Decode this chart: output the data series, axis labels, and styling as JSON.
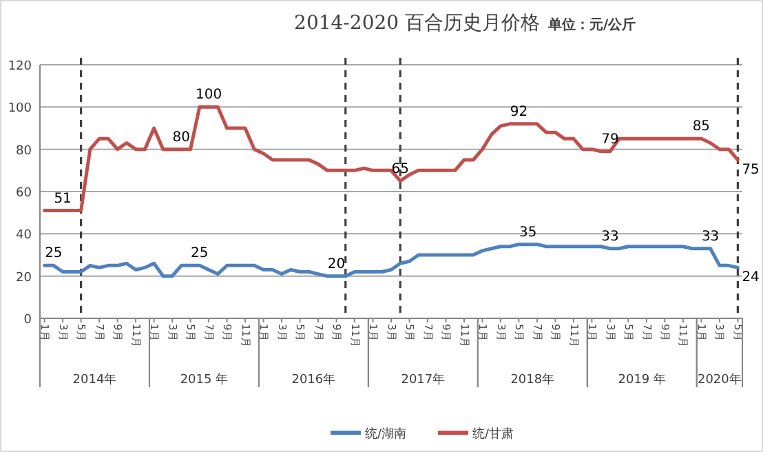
{
  "chart_data": {
    "type": "line",
    "title": "2014-2020 百合历史月价格",
    "subtitle": "单位：元/公斤",
    "x": [
      "2014-01",
      "2014-02",
      "2014-03",
      "2014-04",
      "2014-05",
      "2014-06",
      "2014-07",
      "2014-08",
      "2014-09",
      "2014-10",
      "2014-11",
      "2014-12",
      "2015-01",
      "2015-02",
      "2015-03",
      "2015-04",
      "2015-05",
      "2015-06",
      "2015-07",
      "2015-08",
      "2015-09",
      "2015-10",
      "2015-11",
      "2015-12",
      "2016-01",
      "2016-02",
      "2016-03",
      "2016-04",
      "2016-05",
      "2016-06",
      "2016-07",
      "2016-08",
      "2016-09",
      "2016-10",
      "2016-11",
      "2016-12",
      "2017-01",
      "2017-02",
      "2017-03",
      "2017-04",
      "2017-05",
      "2017-06",
      "2017-07",
      "2017-08",
      "2017-09",
      "2017-10",
      "2017-11",
      "2017-12",
      "2018-01",
      "2018-02",
      "2018-03",
      "2018-04",
      "2018-05",
      "2018-06",
      "2018-07",
      "2018-08",
      "2018-09",
      "2018-10",
      "2018-11",
      "2018-12",
      "2019-01",
      "2019-02",
      "2019-03",
      "2019-04",
      "2019-05",
      "2019-06",
      "2019-07",
      "2019-08",
      "2019-09",
      "2019-10",
      "2019-11",
      "2019-12",
      "2020-01",
      "2020-02",
      "2020-03",
      "2020-04",
      "2020-05"
    ],
    "xlim": [
      "2013-12-16",
      "2020-05-16"
    ],
    "xticks": [
      {
        "value": "2014-01",
        "label": "1月"
      },
      {
        "value": "2014-03",
        "label": "3月"
      },
      {
        "value": "2014-05",
        "label": "5月"
      },
      {
        "value": "2014-07",
        "label": "7月"
      },
      {
        "value": "2014-09",
        "label": "9月"
      },
      {
        "value": "2014-11",
        "label": "11月"
      },
      {
        "value": "2015-01",
        "label": "1月"
      },
      {
        "value": "2015-03",
        "label": "3月"
      },
      {
        "value": "2015-05",
        "label": "5月"
      },
      {
        "value": "2015-07",
        "label": "7月"
      },
      {
        "value": "2015-09",
        "label": "9月"
      },
      {
        "value": "2015-11",
        "label": "11月"
      },
      {
        "value": "2016-01",
        "label": "1月"
      },
      {
        "value": "2016-03",
        "label": "3月"
      },
      {
        "value": "2016-05",
        "label": "5月"
      },
      {
        "value": "2016-07",
        "label": "7月"
      },
      {
        "value": "2016-09",
        "label": "9月"
      },
      {
        "value": "2016-11",
        "label": "11月"
      },
      {
        "value": "2017-01",
        "label": "1月"
      },
      {
        "value": "2017-03",
        "label": "3月"
      },
      {
        "value": "2017-05",
        "label": "5月"
      },
      {
        "value": "2017-07",
        "label": "7月"
      },
      {
        "value": "2017-09",
        "label": "9月"
      },
      {
        "value": "2017-11",
        "label": "11月"
      },
      {
        "value": "2018-01",
        "label": "1月"
      },
      {
        "value": "2018-03",
        "label": "3月"
      },
      {
        "value": "2018-05",
        "label": "5月"
      },
      {
        "value": "2018-07",
        "label": "7月"
      },
      {
        "value": "2018-09",
        "label": "9月"
      },
      {
        "value": "2018-11",
        "label": "11月"
      },
      {
        "value": "2019-01",
        "label": "1月"
      },
      {
        "value": "2019-03",
        "label": "3月"
      },
      {
        "value": "2019-05",
        "label": "5月"
      },
      {
        "value": "2019-07",
        "label": "7月"
      },
      {
        "value": "2019-09",
        "label": "9月"
      },
      {
        "value": "2019-11",
        "label": "11月"
      },
      {
        "value": "2020-01",
        "label": "1月"
      },
      {
        "value": "2020-03",
        "label": "3月"
      },
      {
        "value": "2020-05",
        "label": "5月"
      }
    ],
    "annotations": [
      "2014年",
      "2015 年",
      "2016年",
      "2017年",
      "2018年",
      "2019 年",
      "2020年"
    ],
    "ylim": [
      0,
      120
    ],
    "yticks": [
      0,
      20,
      40,
      60,
      80,
      100,
      120
    ],
    "grid": "y",
    "legend": "bottom",
    "ref_lines": [
      {
        "axis": "x",
        "value": "2014-05",
        "color": "#404040",
        "line_style": "dashed"
      },
      {
        "axis": "x",
        "value": "2016-10",
        "color": "#404040",
        "line_style": "dashed"
      },
      {
        "axis": "x",
        "value": "2017-04",
        "color": "#404040",
        "line_style": "dashed"
      },
      {
        "axis": "x",
        "value": "2020-05",
        "color": "#404040",
        "line_style": "dashed"
      }
    ],
    "series": [
      {
        "name": "统/湖南",
        "color": "#4f81bd",
        "values": [
          25,
          25,
          22,
          22,
          22,
          25,
          24,
          25,
          25,
          26,
          23,
          24,
          26,
          20,
          20,
          25,
          25,
          25,
          23,
          21,
          25,
          25,
          25,
          25,
          23,
          23,
          21,
          23,
          22,
          22,
          21,
          20,
          20,
          20,
          22,
          22,
          22,
          22,
          23,
          26,
          27,
          30,
          30,
          30,
          30,
          30,
          30,
          30,
          32,
          33,
          34,
          34,
          35,
          35,
          35,
          34,
          34,
          34,
          34,
          34,
          34,
          34,
          33,
          33,
          34,
          34,
          34,
          34,
          34,
          34,
          34,
          33,
          33,
          33,
          25,
          25,
          24
        ],
        "value_labels": [
          null,
          "25",
          null,
          null,
          null,
          null,
          null,
          null,
          null,
          null,
          null,
          null,
          null,
          null,
          null,
          null,
          null,
          "25",
          null,
          null,
          null,
          null,
          null,
          null,
          null,
          null,
          null,
          null,
          null,
          null,
          null,
          null,
          "20",
          null,
          null,
          null,
          null,
          null,
          null,
          null,
          null,
          null,
          null,
          null,
          null,
          null,
          null,
          null,
          null,
          null,
          null,
          null,
          null,
          "35",
          null,
          null,
          null,
          null,
          null,
          null,
          null,
          null,
          "33",
          null,
          null,
          null,
          null,
          null,
          null,
          null,
          null,
          null,
          null,
          "33",
          null,
          null,
          "24"
        ]
      },
      {
        "name": "统/甘肃",
        "color": "#c0504d",
        "values": [
          51,
          51,
          51,
          51,
          51,
          80,
          85,
          85,
          80,
          83,
          80,
          80,
          90,
          80,
          80,
          80,
          80,
          100,
          100,
          100,
          90,
          90,
          90,
          80,
          78,
          75,
          75,
          75,
          75,
          75,
          73,
          70,
          70,
          70,
          70,
          71,
          70,
          70,
          70,
          65,
          68,
          70,
          70,
          70,
          70,
          70,
          75,
          75,
          80,
          87,
          91,
          92,
          92,
          92,
          92,
          88,
          88,
          85,
          85,
          80,
          80,
          79,
          79,
          85,
          85,
          85,
          85,
          85,
          85,
          85,
          85,
          85,
          85,
          83,
          80,
          80,
          75
        ],
        "value_labels": [
          null,
          null,
          "51",
          null,
          null,
          null,
          null,
          null,
          null,
          null,
          null,
          null,
          null,
          null,
          null,
          "80",
          null,
          null,
          "100",
          null,
          null,
          null,
          null,
          null,
          null,
          null,
          null,
          null,
          null,
          null,
          null,
          null,
          null,
          null,
          null,
          null,
          null,
          null,
          null,
          "65",
          null,
          null,
          null,
          null,
          null,
          null,
          null,
          null,
          null,
          null,
          null,
          null,
          "92",
          null,
          null,
          null,
          null,
          null,
          null,
          null,
          null,
          null,
          "79",
          null,
          null,
          null,
          null,
          null,
          null,
          null,
          null,
          null,
          "85",
          null,
          null,
          null,
          "75"
        ]
      }
    ]
  }
}
